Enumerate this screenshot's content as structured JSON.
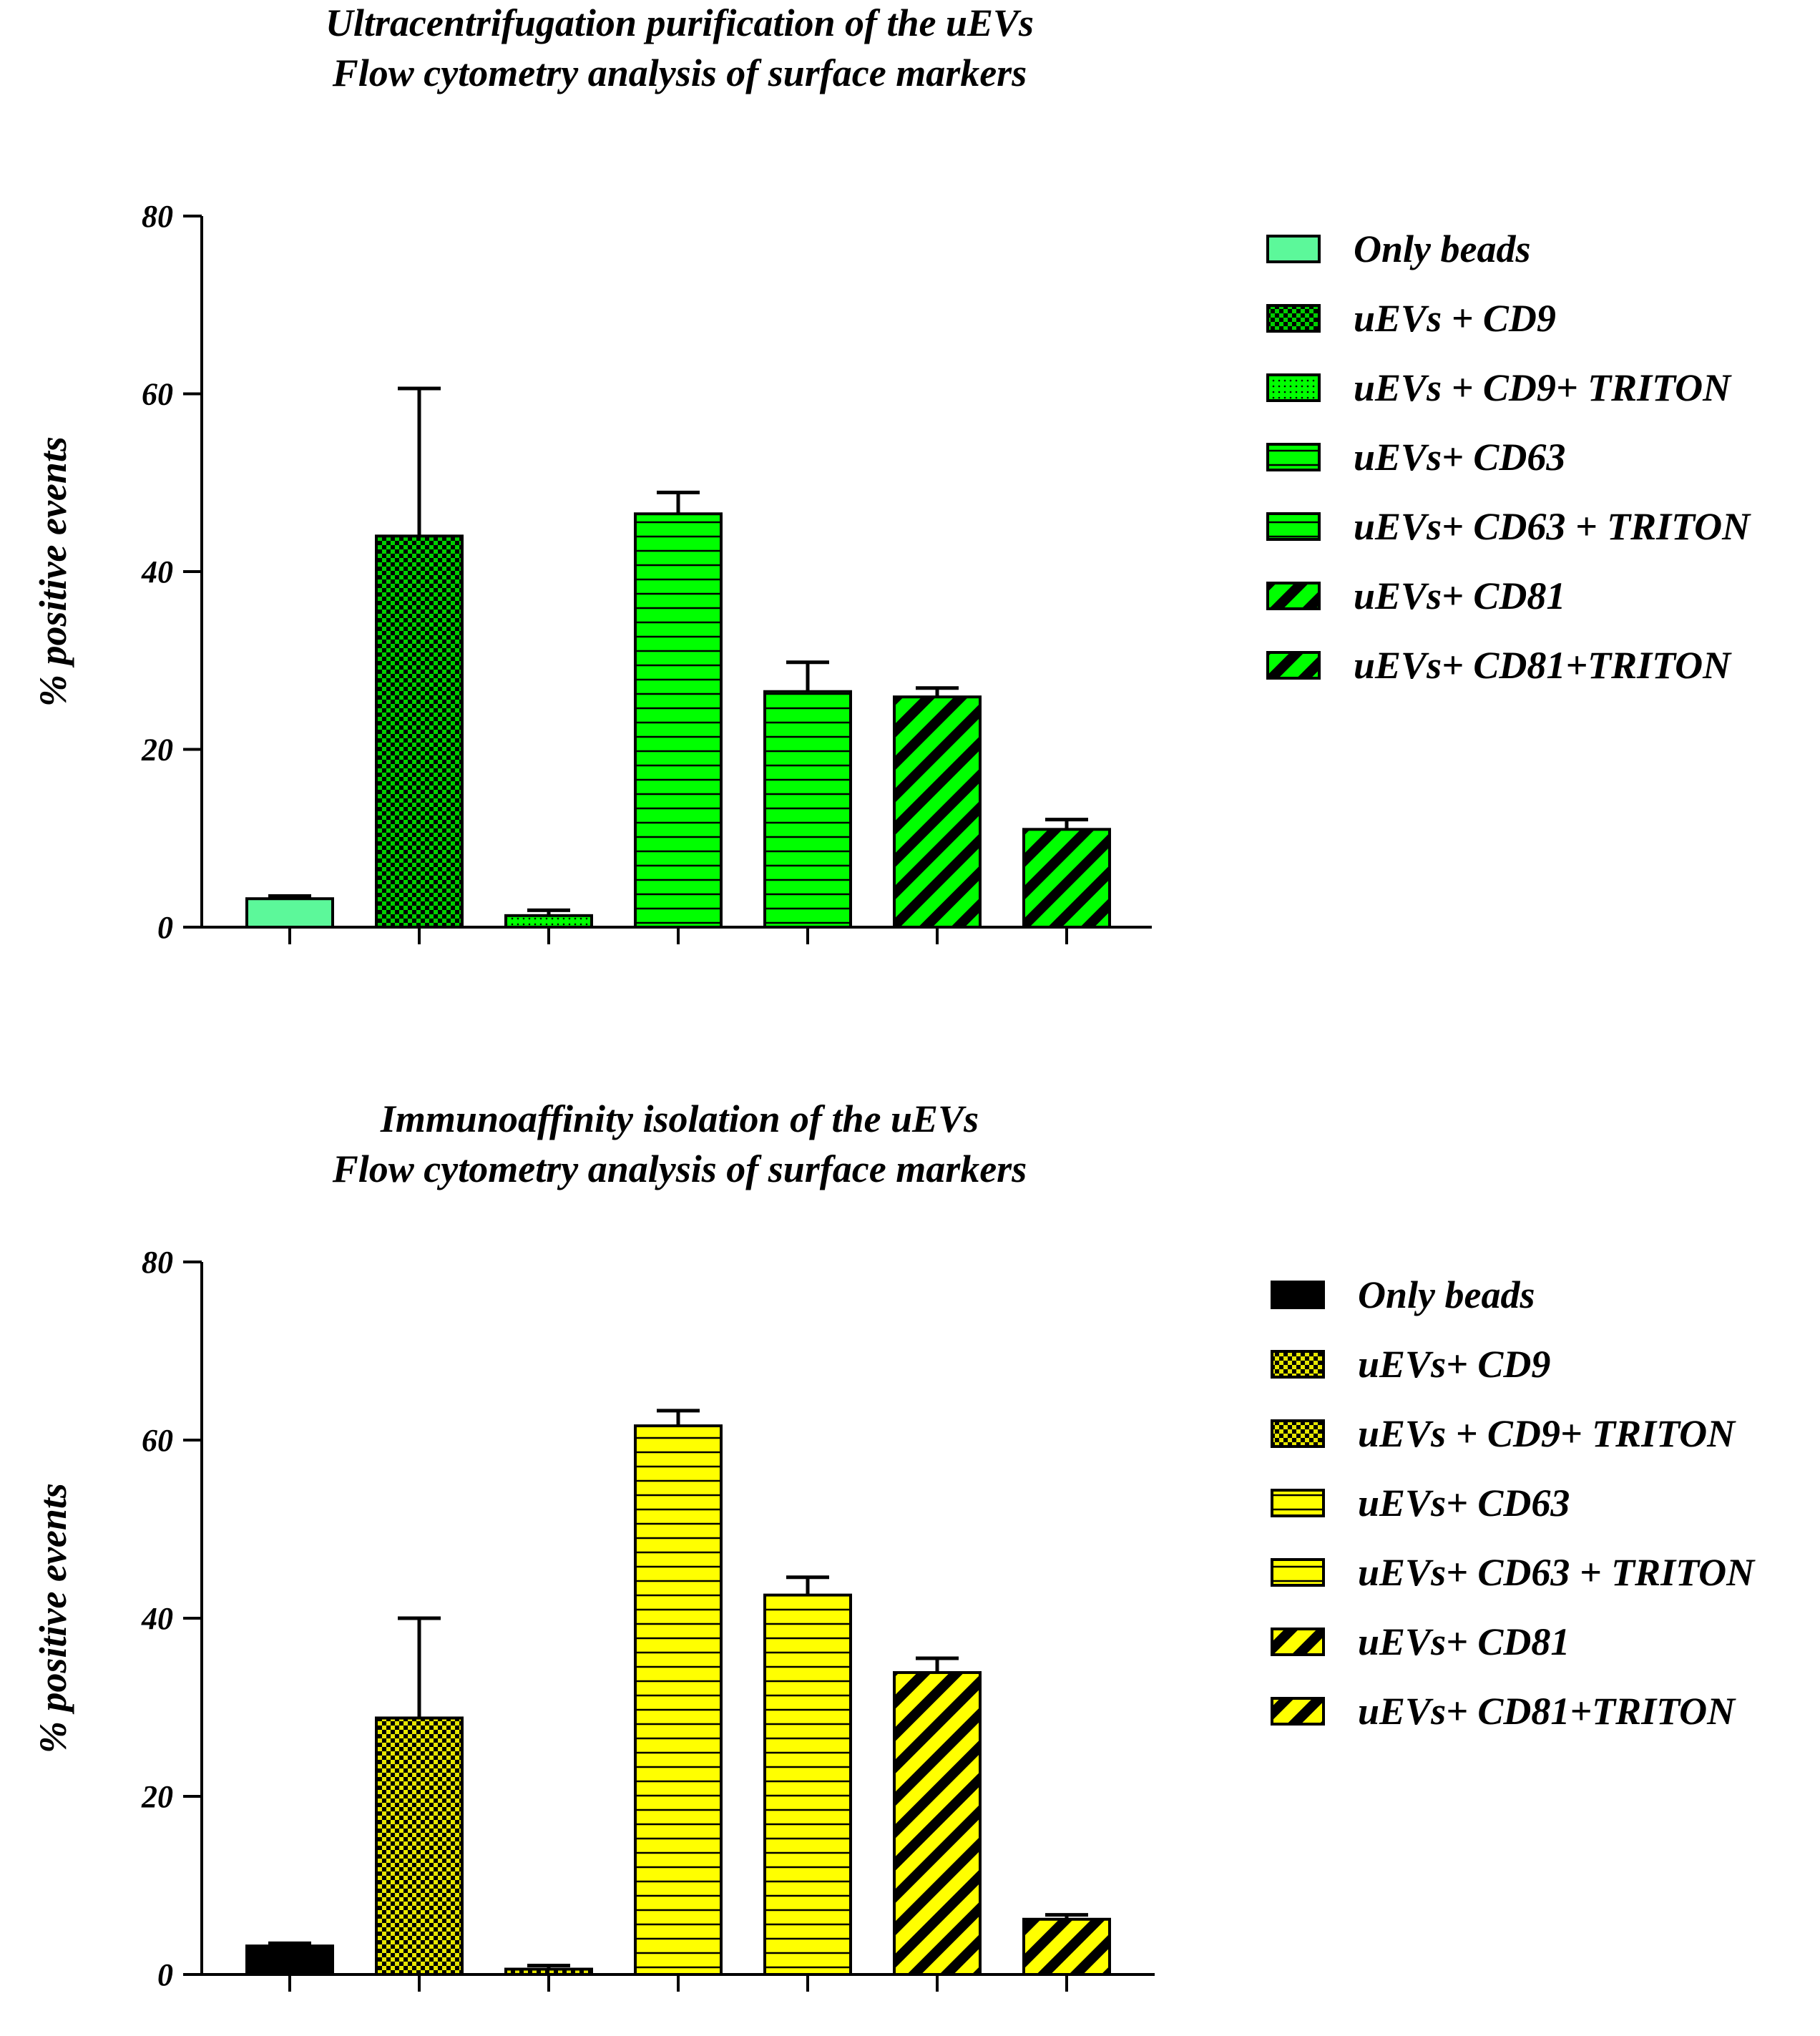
{
  "chart_data": [
    {
      "type": "bar",
      "title": "Ultracentrifugation purification of the uEVs",
      "subtitle": "Flow cytometry analysis of surface markers",
      "xlabel": "",
      "ylabel": "% positive events",
      "ylim": [
        0,
        80
      ],
      "yticks": [
        0,
        20,
        40,
        60,
        80
      ],
      "grid": false,
      "legend_position": "right",
      "categories": [
        "Only beads",
        "uEVs + CD9",
        "uEVs + CD9+ TRITON",
        "uEVs+ CD63",
        "uEVs+ CD63 + TRITON",
        "uEVs+ CD81",
        "uEVs+ CD81+TRITON"
      ],
      "values": [
        3.2,
        44.0,
        1.3,
        46.5,
        26.5,
        25.9,
        11.0
      ],
      "errors": [
        0.3,
        16.6,
        0.6,
        2.4,
        3.3,
        1.0,
        1.1
      ],
      "fills": [
        "#5cf89a",
        "#00cf00",
        "#00ff00",
        "#00ff00",
        "#00ff00",
        "#00ff00",
        "#00ff00"
      ],
      "patterns": [
        "solid",
        "checker",
        "dots",
        "hlines",
        "hlines",
        "diag",
        "diag"
      ]
    },
    {
      "type": "bar",
      "title": "Immunoaffinity isolation of the uEVs",
      "subtitle": "Flow cytometry analysis of surface markers",
      "xlabel": "",
      "ylabel": "% positive events",
      "ylim": [
        0,
        80
      ],
      "yticks": [
        0,
        20,
        40,
        60,
        80
      ],
      "grid": false,
      "legend_position": "right",
      "categories": [
        "Only beads",
        "uEVs+ CD9",
        "uEVs + CD9+ TRITON",
        "uEVs+ CD63",
        "uEVs+ CD63 + TRITON",
        "uEVs+ CD81",
        "uEVs+ CD81+TRITON"
      ],
      "values": [
        3.2,
        28.8,
        0.6,
        61.6,
        42.6,
        33.9,
        6.2
      ],
      "errors": [
        0.3,
        11.2,
        0.4,
        1.7,
        2.0,
        1.6,
        0.5
      ],
      "fills": [
        "#000000",
        "#e6e600",
        "#e6e600",
        "#ffff00",
        "#ffff00",
        "#ffff00",
        "#ffff00"
      ],
      "patterns": [
        "solid",
        "checker",
        "checker",
        "hlines",
        "hlines",
        "diag",
        "diag"
      ]
    }
  ]
}
